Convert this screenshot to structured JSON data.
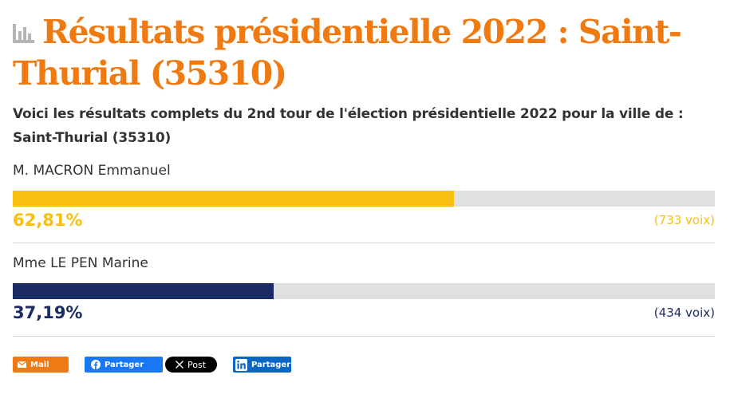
{
  "header": {
    "title": "Résultats présidentielle 2022 : Saint-Thurial (35310)",
    "title_icon": "bar-chart-icon",
    "intro": "Voici les résultats complets du 2nd tour de l'élection présidentielle 2022 pour la ville de : Saint-Thurial (35310)"
  },
  "candidates": [
    {
      "name": "M. MACRON Emmanuel",
      "percent_label": "62,81%",
      "percent_value": 62.81,
      "votes": "(733 voix)",
      "color": "#f9bf0f"
    },
    {
      "name": "Mme LE PEN Marine",
      "percent_label": "37,19%",
      "percent_value": 37.19,
      "votes": "(434 voix)",
      "color": "#1b2b63"
    }
  ],
  "share": {
    "mail": {
      "label": "Mail",
      "icon": "envelope-icon",
      "color": "#ef7a12"
    },
    "facebook": {
      "label": "Partager",
      "icon": "facebook-icon",
      "color": "#1877f2"
    },
    "x": {
      "label": "Post",
      "icon": "x-logo-icon",
      "color": "#000000"
    },
    "linkedin": {
      "label": "Partager",
      "icon": "linkedin-icon",
      "color": "#0a66c2"
    }
  },
  "colors": {
    "title": "#ef7a12",
    "text": "#333333",
    "track": "#e0e0e0",
    "separator": "#d9d9d9"
  }
}
